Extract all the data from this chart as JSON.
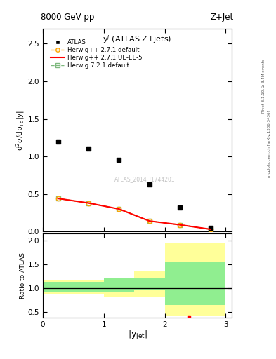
{
  "title_top": "8000 GeV pp",
  "title_right": "Z+Jet",
  "ylabel_main": "d$^2\\sigma$/dp$_{Td}$|y|",
  "xlabel": "|y$_{jet}$|",
  "ylabel_ratio": "Ratio to ATLAS",
  "right_label": "Rivet 3.1.10, ≥ 3.4M events",
  "right_label2": "mcplots.cern.ch [arXiv:1306.3436]",
  "plot_label": "y$^{j}$ (ATLAS Z+jets)",
  "watermark": "ATLAS_2014_I1744201",
  "atlas_x": [
    0.25,
    0.75,
    1.25,
    1.75,
    2.25,
    2.75
  ],
  "atlas_y": [
    1.2,
    1.1,
    0.95,
    0.63,
    0.32,
    0.05
  ],
  "hw271_x": [
    0.25,
    0.75,
    1.25,
    1.75,
    2.25,
    2.75
  ],
  "hw271_y": [
    0.44,
    0.38,
    0.3,
    0.14,
    0.09,
    0.03
  ],
  "hw271ue_x": [
    0.25,
    0.75,
    1.25,
    1.75,
    2.25,
    2.75
  ],
  "hw271ue_y": [
    0.44,
    0.38,
    0.3,
    0.14,
    0.09,
    0.03
  ],
  "hw721_x": [
    0.25,
    0.75,
    1.25,
    1.75,
    2.25,
    2.75
  ],
  "hw721_y": [
    0.44,
    0.38,
    0.3,
    0.14,
    0.09,
    0.03
  ],
  "ylim_main": [
    0.0,
    2.7
  ],
  "ylim_ratio": [
    0.38,
    2.15
  ],
  "xlim": [
    0.0,
    3.1
  ],
  "ratio_bins": [
    0.0,
    0.5,
    1.0,
    1.5,
    2.0,
    2.5,
    3.0
  ],
  "ratio_yellow_lo": [
    0.87,
    0.87,
    0.82,
    0.82,
    0.43,
    0.43
  ],
  "ratio_yellow_hi": [
    1.18,
    1.18,
    1.18,
    1.35,
    1.95,
    1.95
  ],
  "ratio_green_lo": [
    0.92,
    0.92,
    0.92,
    0.95,
    0.65,
    0.65
  ],
  "ratio_green_hi": [
    1.13,
    1.13,
    1.22,
    1.22,
    1.55,
    1.55
  ],
  "ratio_red_x": [
    2.4
  ],
  "ratio_red_y": [
    0.4
  ],
  "color_atlas": "#000000",
  "color_hw271": "#FFA500",
  "color_hw271ue": "#FF0000",
  "color_hw721_line": "#7DB87D",
  "color_yellow_fill": "#FFFF99",
  "color_green_fill": "#90EE90"
}
